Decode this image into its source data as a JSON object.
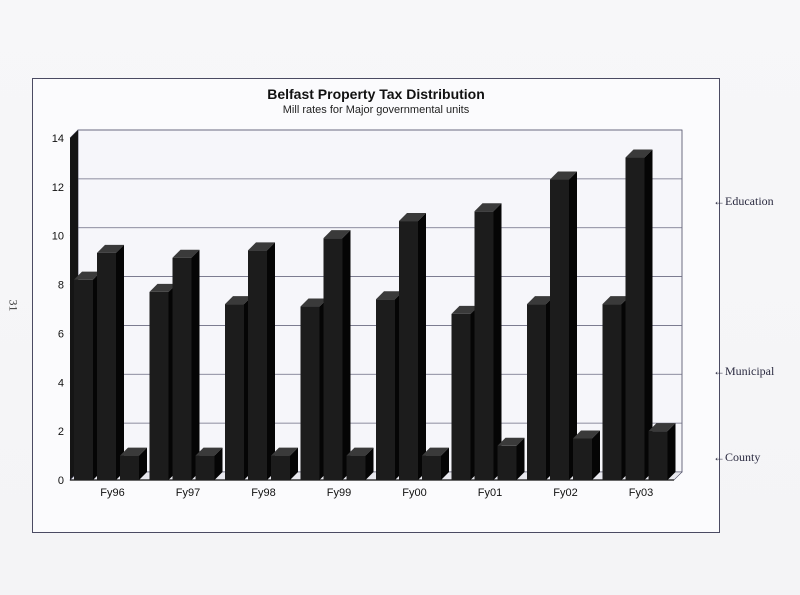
{
  "page": {
    "page_number": "31"
  },
  "chart_data": {
    "type": "bar",
    "title": "Belfast Property Tax Distribution",
    "subtitle": "Mill rates for Major governmental units",
    "xlabel": "",
    "ylabel": "",
    "ylim": [
      0,
      14
    ],
    "yticks": [
      0,
      2,
      4,
      6,
      8,
      10,
      12,
      14
    ],
    "grid": true,
    "categories": [
      "Fy96",
      "Fy97",
      "Fy98",
      "Fy99",
      "Fy00",
      "Fy01",
      "Fy02",
      "Fy03"
    ],
    "series": [
      {
        "name": "Municipal",
        "values": [
          8.2,
          7.7,
          7.2,
          7.1,
          7.4,
          6.8,
          7.2,
          7.2
        ]
      },
      {
        "name": "Education",
        "values": [
          9.3,
          9.1,
          9.4,
          9.9,
          10.6,
          11.0,
          12.3,
          13.2
        ]
      },
      {
        "name": "County",
        "values": [
          1.0,
          1.0,
          1.0,
          1.0,
          1.0,
          1.4,
          1.7,
          2.0
        ]
      }
    ],
    "legend": {
      "placement": "right",
      "labels": [
        "←Education",
        "←Municipal",
        "←County"
      ]
    },
    "colors": {
      "bar": "#1c1c1c",
      "bar_side": "#050505",
      "bar_top": "#3a3a3a",
      "grid": "#6a6a80",
      "frame": "#4a4a62"
    }
  }
}
